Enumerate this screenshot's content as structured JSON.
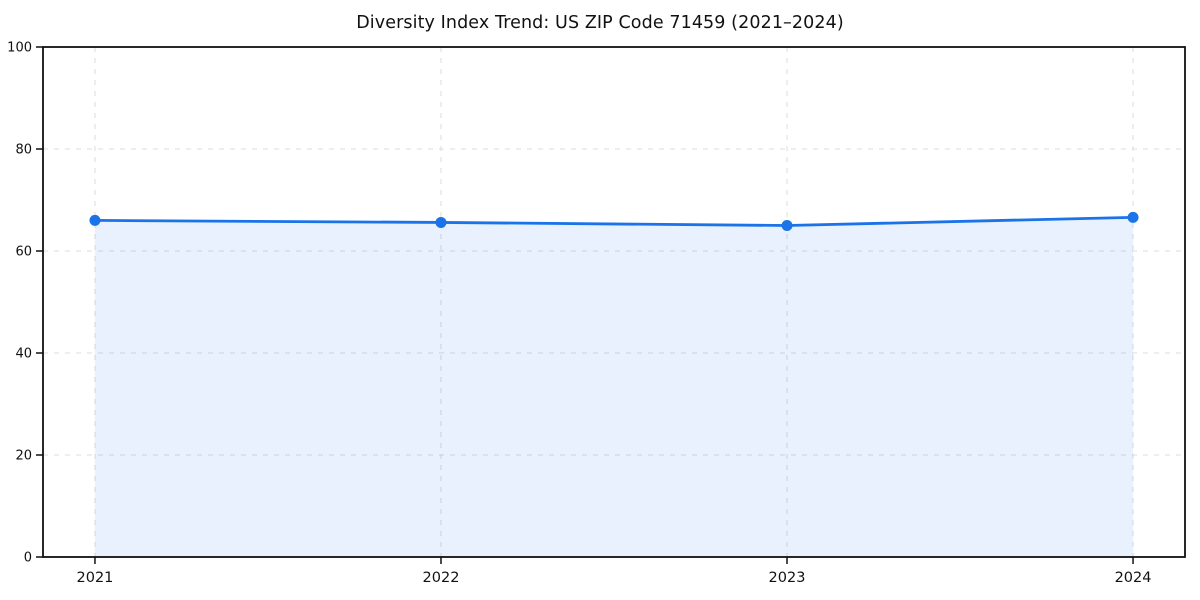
{
  "chart_data": {
    "type": "line",
    "title": "Diversity Index Trend: US ZIP Code 71459 (2021–2024)",
    "categories": [
      "2021",
      "2022",
      "2023",
      "2024"
    ],
    "series": [
      {
        "name": "Diversity Index",
        "values": [
          66.0,
          65.6,
          65.0,
          66.6
        ]
      }
    ],
    "xlabel": "",
    "ylabel": "",
    "ylim": [
      0,
      100
    ],
    "yticks": [
      0,
      20,
      40,
      60,
      80,
      100
    ],
    "grid": "dashed-both-axes",
    "legend": "none",
    "area_fill": true,
    "marker": "circle",
    "colors": {
      "line": "#1a73e8",
      "marker": "#1a73e8",
      "area": "rgba(26,115,232,0.10)",
      "grid": "#dcdcdc",
      "axis": "#111111",
      "tick_label": "#111111",
      "background": "#ffffff"
    }
  }
}
